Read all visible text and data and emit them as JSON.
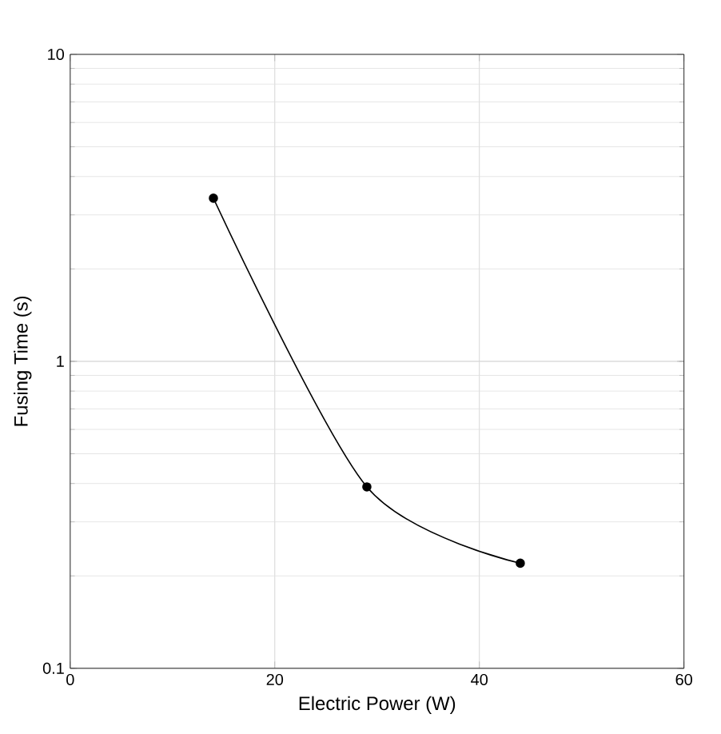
{
  "chart_data": {
    "type": "line",
    "xlabel": "Electric Power (W)",
    "ylabel": "Fusing Time (s)",
    "x": [
      14,
      29,
      44
    ],
    "series": [
      {
        "color": "#000000",
        "values": [
          3.4,
          0.39,
          0.22
        ]
      }
    ],
    "xlim": [
      0,
      60
    ],
    "xticks": [
      0,
      20,
      40,
      60
    ],
    "ylim": [
      0.1,
      10
    ],
    "yticks": [
      0.1,
      1,
      10
    ],
    "log": "y",
    "grid": true,
    "marker": "circle",
    "line_style": "solid"
  }
}
